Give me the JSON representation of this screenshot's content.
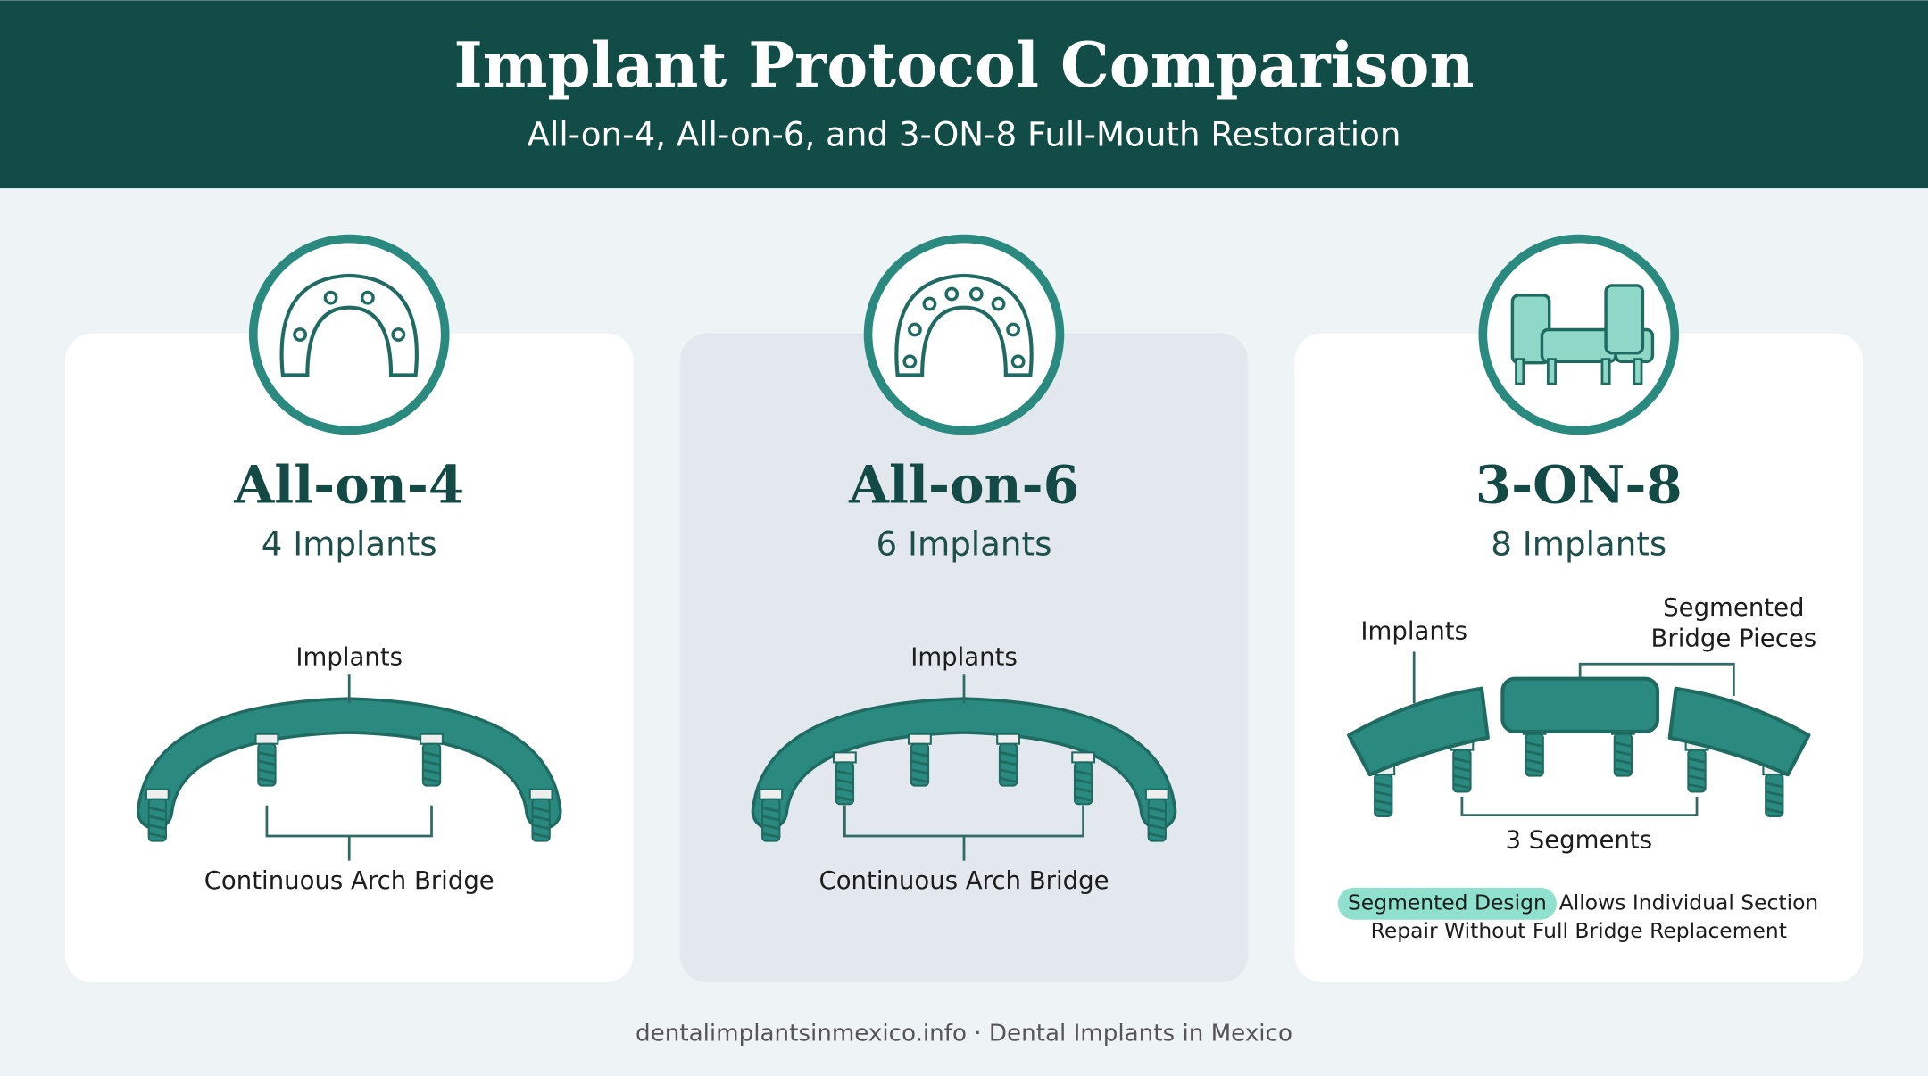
{
  "header": {
    "title": "Implant Protocol Comparison",
    "subtitle": "All-on-4, All-on-6, and 3-ON-8 Full-Mouth Restoration"
  },
  "cards": [
    {
      "title": "All-on-4",
      "subtitle": "4 Implants",
      "top_label": "Implants",
      "bottom_label": "Continuous Arch Bridge"
    },
    {
      "title": "All-on-6",
      "subtitle": "6 Implants",
      "top_label": "Implants",
      "bottom_label": "Continuous Arch Bridge"
    },
    {
      "title": "3-ON-8",
      "subtitle": "8 Implants",
      "implants_label": "Implants",
      "pieces_label": [
        "Segmented",
        "Bridge Pieces"
      ],
      "segments_label": "3 Segments",
      "note": {
        "highlight": "Segmented Design",
        "line1": "Allows Individual Section",
        "line2": "Repair Without Full Bridge Replacement"
      }
    }
  ],
  "footer": "dentalimplantsinmexico.info · Dental Implants in Mexico"
}
